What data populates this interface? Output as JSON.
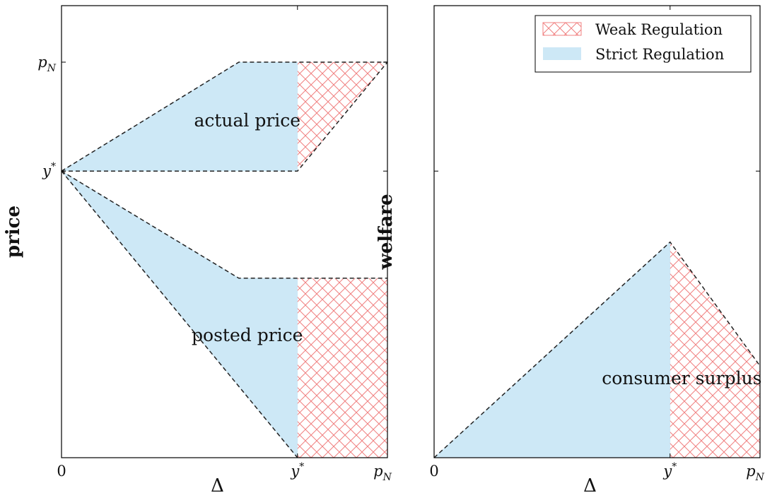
{
  "colors": {
    "strict_fill": "#cde8f6",
    "weak_hatch": "#f08080",
    "boundary": "#222222",
    "frame": "#000000",
    "background": "#ffffff"
  },
  "legend": {
    "placement": "top-right",
    "entries": [
      {
        "label": "Weak Regulation",
        "style": "red-crosshatch"
      },
      {
        "label": "Strict Regulation",
        "style": "light-blue-fill"
      }
    ]
  },
  "chart_data": [
    {
      "type": "area",
      "title": "",
      "xlabel": "Δ",
      "ylabel": "price",
      "grid": false,
      "xlim": [
        0,
        1
      ],
      "ylim": [
        0,
        1
      ],
      "xticks": [
        {
          "value": 0,
          "label": "0"
        },
        {
          "value": 0.724,
          "label": "y*"
        },
        {
          "value": 1,
          "label": "pN"
        }
      ],
      "yticks": [
        {
          "value": 0.634,
          "label": "y*"
        },
        {
          "value": 0.875,
          "label": "pN"
        }
      ],
      "annotations": [
        {
          "text": "actual price",
          "x": 0.57,
          "y": 0.745
        },
        {
          "text": "posted price",
          "x": 0.57,
          "y": 0.27
        }
      ],
      "regions": [
        {
          "name": "Strict Regulation",
          "kind": "fill",
          "points": [
            [
              0,
              0.634
            ],
            [
              0.544,
              0.875
            ],
            [
              0.724,
              0.875
            ],
            [
              0.724,
              0.634
            ]
          ]
        },
        {
          "name": "Strict Regulation",
          "kind": "fill",
          "points": [
            [
              0,
              0.634
            ],
            [
              0.544,
              0.397
            ],
            [
              0.724,
              0.397
            ],
            [
              0.724,
              0
            ]
          ]
        },
        {
          "name": "Weak Regulation",
          "kind": "hatch",
          "points": [
            [
              0.724,
              0.875
            ],
            [
              1,
              0.875
            ],
            [
              0.724,
              0.634
            ]
          ]
        },
        {
          "name": "Weak Regulation",
          "kind": "hatch",
          "points": [
            [
              0.724,
              0.397
            ],
            [
              1,
              0.397
            ],
            [
              1,
              0
            ],
            [
              0.724,
              0
            ]
          ]
        }
      ],
      "dashed_lines": [
        [
          [
            0,
            0.634
          ],
          [
            0.544,
            0.875
          ],
          [
            1,
            0.875
          ]
        ],
        [
          [
            0,
            0.634
          ],
          [
            0.724,
            0.634
          ],
          [
            1,
            0.875
          ]
        ],
        [
          [
            0,
            0.634
          ],
          [
            0.544,
            0.397
          ],
          [
            1,
            0.397
          ]
        ],
        [
          [
            0,
            0.634
          ],
          [
            0.724,
            0
          ]
        ]
      ]
    },
    {
      "type": "area",
      "title": "",
      "xlabel": "Δ",
      "ylabel": "welfare",
      "grid": false,
      "xlim": [
        0,
        1
      ],
      "ylim": [
        0,
        1
      ],
      "xticks": [
        {
          "value": 0,
          "label": "0"
        },
        {
          "value": 0.724,
          "label": "y*"
        },
        {
          "value": 1,
          "label": "pN"
        }
      ],
      "yticks": [
        {
          "value": 0.634,
          "label": ""
        }
      ],
      "annotations": [
        {
          "text": "consumer surplus",
          "x": 0.76,
          "y": 0.175
        }
      ],
      "regions": [
        {
          "name": "Strict Regulation",
          "kind": "fill",
          "points": [
            [
              0,
              0
            ],
            [
              0.724,
              0.477
            ],
            [
              0.724,
              0
            ]
          ]
        },
        {
          "name": "Weak Regulation",
          "kind": "hatch",
          "points": [
            [
              0.724,
              0.477
            ],
            [
              1,
              0.203
            ],
            [
              1,
              0
            ],
            [
              0.724,
              0
            ]
          ]
        }
      ],
      "dashed_lines": [
        [
          [
            0,
            0
          ],
          [
            0.724,
            0.477
          ],
          [
            1,
            0.203
          ]
        ]
      ]
    }
  ]
}
